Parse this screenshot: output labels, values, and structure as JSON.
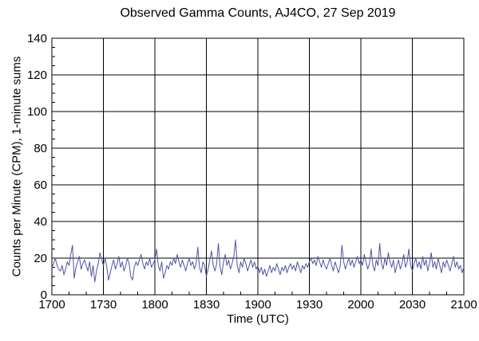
{
  "colors": {
    "background": "#ffffff",
    "axis": "#000000",
    "grid": "#000000",
    "series_line": "#5253a4",
    "text": "#000000"
  },
  "chart_data": {
    "type": "line",
    "title": "Observed Gamma Counts, AJ4CO, 27 Sep 2019",
    "xlabel": "Time (UTC)",
    "ylabel": "Counts per Minute (CPM), 1-minute sums",
    "grid": true,
    "legend": "none",
    "line_color": "#5253a4",
    "xlim_minutes": [
      0,
      240
    ],
    "x_tick_positions": [
      0,
      30,
      60,
      90,
      120,
      150,
      180,
      210,
      240
    ],
    "x_tick_labels": [
      "1700",
      "1730",
      "1800",
      "1830",
      "1900",
      "1930",
      "2000",
      "2030",
      "2100"
    ],
    "x_minor_step_minutes": 10,
    "ylim": [
      0,
      140
    ],
    "y_ticks": [
      0,
      20,
      40,
      60,
      80,
      100,
      120,
      140
    ],
    "y_tick_labels": [
      "0",
      "20",
      "40",
      "60",
      "80",
      "100",
      "120",
      "140"
    ],
    "y_minor_step": 5,
    "series_name": "Observed gamma counts, 1-minute sums",
    "x_unit": "minutes after 1700 UTC, 1 point per minute",
    "values": [
      15,
      17,
      20,
      16,
      14,
      13,
      16,
      11,
      14,
      18,
      16,
      22,
      27,
      9,
      15,
      18,
      21,
      14,
      17,
      19,
      16,
      13,
      18,
      10,
      16,
      7,
      13,
      17,
      23,
      19,
      16,
      20,
      15,
      8,
      12,
      16,
      19,
      14,
      17,
      21,
      15,
      18,
      13,
      16,
      20,
      17,
      10,
      8,
      15,
      18,
      16,
      19,
      22,
      17,
      14,
      18,
      16,
      20,
      15,
      17,
      19,
      25,
      16,
      13,
      18,
      9,
      12,
      16,
      14,
      18,
      16,
      20,
      17,
      22,
      18,
      15,
      19,
      16,
      13,
      17,
      20,
      16,
      18,
      14,
      17,
      26,
      15,
      12,
      18,
      16,
      10,
      14,
      19,
      24,
      16,
      13,
      17,
      28,
      15,
      11,
      18,
      22,
      16,
      19,
      14,
      17,
      21,
      30,
      16,
      12,
      18,
      15,
      20,
      17,
      13,
      16,
      19,
      15,
      18,
      14,
      16,
      12,
      15,
      11,
      14,
      10,
      13,
      16,
      12,
      15,
      13,
      17,
      14,
      11,
      15,
      13,
      16,
      12,
      15,
      17,
      14,
      16,
      13,
      18,
      15,
      12,
      16,
      14,
      17,
      15,
      18,
      20,
      17,
      19,
      16,
      21,
      18,
      15,
      19,
      16,
      14,
      17,
      20,
      16,
      13,
      18,
      15,
      12,
      16,
      27,
      18,
      14,
      17,
      20,
      16,
      19,
      15,
      18,
      21,
      17,
      19,
      16,
      22,
      18,
      14,
      17,
      25,
      16,
      13,
      19,
      16,
      28,
      17,
      14,
      20,
      16,
      23,
      18,
      15,
      19,
      12,
      16,
      19,
      14,
      17,
      22,
      15,
      18,
      25,
      16,
      13,
      17,
      20,
      15,
      18,
      14,
      21,
      16,
      19,
      13,
      17,
      23,
      15,
      18,
      14,
      20,
      16,
      12,
      18,
      15,
      19,
      16,
      13,
      17,
      21,
      15,
      18,
      14,
      16,
      12,
      15
    ]
  }
}
